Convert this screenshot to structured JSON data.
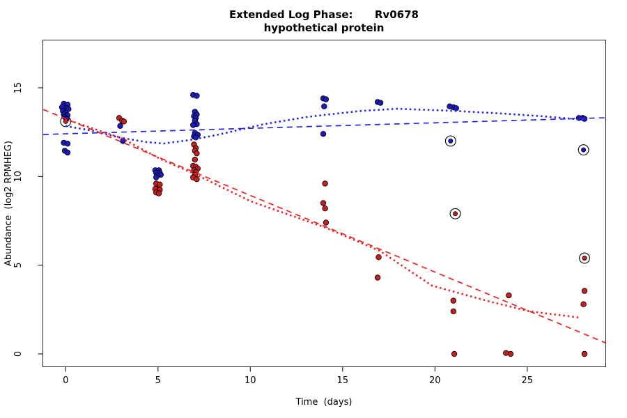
{
  "page": {
    "background": "#ffffff"
  },
  "chart_data": {
    "type": "scatter",
    "title": "Extended Log Phase:      Rv0678",
    "subtitle": "hypothetical protein",
    "xlabel": "Time  (days)",
    "ylabel": "Abundance  (log2 RPMHEG)",
    "x_axis": {
      "ticks": [
        0,
        5,
        10,
        15,
        20,
        25
      ],
      "range": [
        -1.2,
        29.3
      ]
    },
    "y_axis": {
      "ticks": [
        0,
        5,
        10,
        15
      ],
      "range": [
        0,
        16.5
      ]
    },
    "grid": false,
    "legend": "none",
    "colors": {
      "blue_point": "#1a1abf",
      "red_point": "#c42020",
      "blue_line": "#2424e8",
      "red_line": "#ef2020",
      "outline": "#000000"
    },
    "series": [
      {
        "name": "blue",
        "marker": "filled-circle",
        "color_key": "blue_point",
        "points": [
          [
            -0.1,
            14.1
          ],
          [
            0.1,
            14.05
          ],
          [
            -0.2,
            13.9
          ],
          [
            0.05,
            13.85
          ],
          [
            0.15,
            13.8
          ],
          [
            -0.15,
            13.7
          ],
          [
            0.0,
            13.6
          ],
          [
            -0.1,
            13.5
          ],
          [
            0.1,
            13.45
          ],
          [
            -0.05,
            13.35
          ],
          [
            0.05,
            13.25
          ],
          [
            -0.1,
            11.9
          ],
          [
            0.1,
            11.85
          ],
          [
            -0.05,
            11.45
          ],
          [
            0.1,
            11.35
          ],
          [
            2.95,
            12.85
          ],
          [
            3.1,
            12.0
          ],
          [
            4.85,
            10.35
          ],
          [
            5.05,
            10.35
          ],
          [
            4.9,
            10.2
          ],
          [
            5.1,
            10.2
          ],
          [
            5.15,
            10.1
          ],
          [
            4.95,
            10.05
          ],
          [
            4.9,
            9.95
          ],
          [
            4.95,
            9.3
          ],
          [
            6.9,
            14.6
          ],
          [
            7.1,
            14.55
          ],
          [
            7.0,
            13.65
          ],
          [
            7.1,
            13.5
          ],
          [
            6.95,
            13.4
          ],
          [
            7.05,
            13.3
          ],
          [
            7.0,
            13.15
          ],
          [
            7.1,
            12.95
          ],
          [
            6.9,
            12.9
          ],
          [
            7.0,
            12.45
          ],
          [
            7.15,
            12.35
          ],
          [
            6.95,
            12.25
          ],
          [
            7.05,
            12.2
          ],
          [
            13.95,
            14.4
          ],
          [
            14.1,
            14.35
          ],
          [
            14.0,
            13.95
          ],
          [
            13.95,
            12.4
          ],
          [
            16.9,
            14.2
          ],
          [
            17.05,
            14.15
          ],
          [
            20.8,
            13.95
          ],
          [
            21.0,
            13.9
          ],
          [
            21.15,
            13.85
          ],
          [
            27.8,
            13.3
          ],
          [
            28.0,
            13.3
          ],
          [
            28.1,
            13.25
          ]
        ]
      },
      {
        "name": "red",
        "marker": "filled-circle",
        "color_key": "red_point",
        "points": [
          [
            2.9,
            13.3
          ],
          [
            3.05,
            13.15
          ],
          [
            3.15,
            13.1
          ],
          [
            4.9,
            9.6
          ],
          [
            5.1,
            9.55
          ],
          [
            4.85,
            9.3
          ],
          [
            5.1,
            9.25
          ],
          [
            4.9,
            9.1
          ],
          [
            5.05,
            9.05
          ],
          [
            6.95,
            11.8
          ],
          [
            7.05,
            11.6
          ],
          [
            7.0,
            11.45
          ],
          [
            7.1,
            11.3
          ],
          [
            7.0,
            10.95
          ],
          [
            6.9,
            10.6
          ],
          [
            7.05,
            10.55
          ],
          [
            7.15,
            10.45
          ],
          [
            6.95,
            10.35
          ],
          [
            7.05,
            10.25
          ],
          [
            7.0,
            10.1
          ],
          [
            6.9,
            9.95
          ],
          [
            7.1,
            9.85
          ],
          [
            14.05,
            9.6
          ],
          [
            13.95,
            8.5
          ],
          [
            14.05,
            8.2
          ],
          [
            14.1,
            7.4
          ],
          [
            16.95,
            5.45
          ],
          [
            16.9,
            4.3
          ],
          [
            21.0,
            3.0
          ],
          [
            21.0,
            2.4
          ],
          [
            21.05,
            0.0
          ],
          [
            24.0,
            3.3
          ],
          [
            23.85,
            0.05
          ],
          [
            24.1,
            0.0
          ],
          [
            28.1,
            3.55
          ],
          [
            28.05,
            2.8
          ],
          [
            28.1,
            0.0
          ]
        ]
      }
    ],
    "circled_points": [
      {
        "x": 0.0,
        "y": 13.1,
        "color_key": "red_point"
      },
      {
        "x": 20.85,
        "y": 12.0,
        "color_key": "blue_point"
      },
      {
        "x": 21.1,
        "y": 7.9,
        "color_key": "red_point"
      },
      {
        "x": 28.05,
        "y": 11.5,
        "color_key": "blue_point"
      },
      {
        "x": 28.1,
        "y": 5.4,
        "color_key": "red_point"
      }
    ],
    "fit_lines": [
      {
        "name": "blue-linear-fit",
        "style": "dashed",
        "color_key": "blue_line",
        "points": [
          [
            -1.22,
            12.37
          ],
          [
            29.25,
            13.31
          ]
        ]
      },
      {
        "name": "blue-smooth-fit",
        "style": "dotted",
        "color_key": "blue_line",
        "points": [
          [
            -0.01,
            12.84
          ],
          [
            1.35,
            12.6
          ],
          [
            2.86,
            12.21
          ],
          [
            4.37,
            11.94
          ],
          [
            5.31,
            11.86
          ],
          [
            6.71,
            12.05
          ],
          [
            8.14,
            12.33
          ],
          [
            10.78,
            12.96
          ],
          [
            13.05,
            13.35
          ],
          [
            13.99,
            13.47
          ],
          [
            16.06,
            13.7
          ],
          [
            17.95,
            13.82
          ],
          [
            20.97,
            13.7
          ],
          [
            23.61,
            13.55
          ],
          [
            25.88,
            13.39
          ],
          [
            28.14,
            13.19
          ]
        ]
      },
      {
        "name": "red-linear-fit",
        "style": "dashed",
        "color_key": "red_line",
        "points": [
          [
            -1.22,
            13.78
          ],
          [
            29.25,
            0.62
          ]
        ]
      },
      {
        "name": "red-smooth-fit",
        "style": "dotted",
        "color_key": "red_line",
        "points": [
          [
            -0.01,
            13.23
          ],
          [
            3.01,
            12.17
          ],
          [
            5.12,
            10.99
          ],
          [
            7.01,
            10.13
          ],
          [
            10.03,
            8.6
          ],
          [
            13.99,
            7.15
          ],
          [
            17.01,
            5.81
          ],
          [
            19.84,
            3.85
          ],
          [
            22.86,
            2.98
          ],
          [
            25.13,
            2.4
          ],
          [
            27.88,
            2.04
          ]
        ]
      }
    ]
  }
}
